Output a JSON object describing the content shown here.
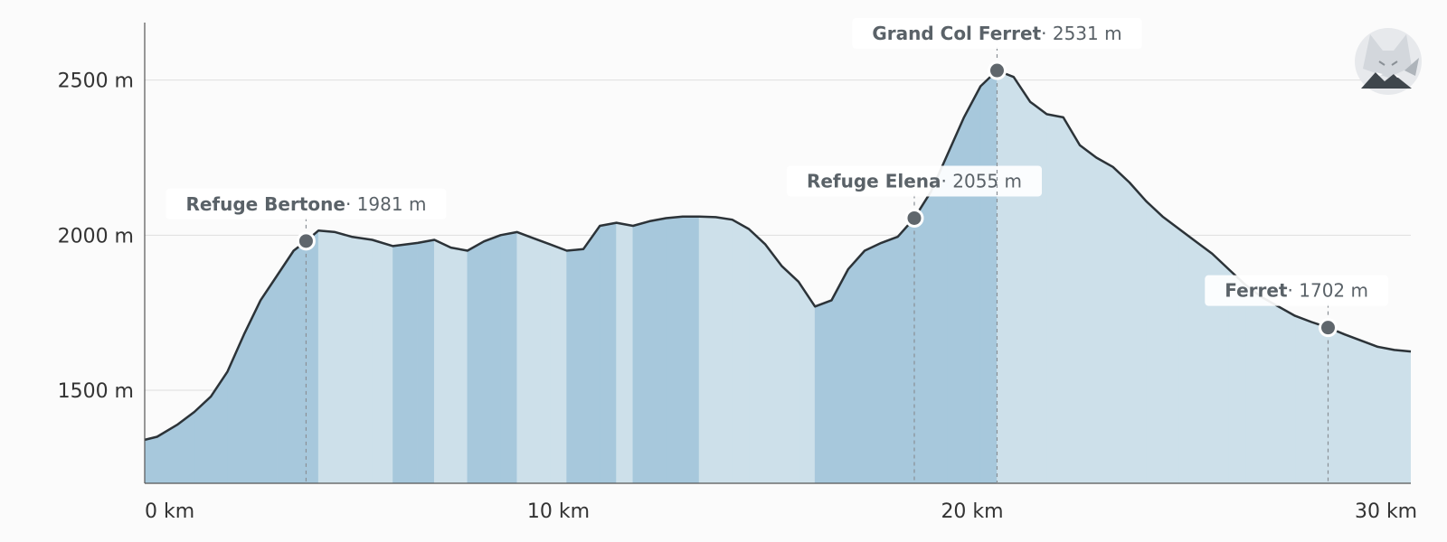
{
  "chart_data": {
    "type": "area",
    "xlabel": "",
    "ylabel": "",
    "x_unit": "km",
    "y_unit": "m",
    "xlim": [
      0,
      30.6
    ],
    "ylim": [
      1200,
      2700
    ],
    "x_ticks": [
      0,
      10,
      20,
      30
    ],
    "x_tick_labels": [
      "0 km",
      "10 km",
      "20 km",
      "30 km"
    ],
    "y_ticks": [
      1500,
      2000,
      2500
    ],
    "y_tick_labels": [
      "1500 m",
      "2000 m",
      "2500 m"
    ],
    "grid": "horizontal",
    "colors": {
      "uphill": "#a7c8dc",
      "downhill": "#cde0ea",
      "line": "#2c3338",
      "marker": "#5f666c"
    },
    "profile": {
      "x": [
        0,
        0.3,
        0.8,
        1.2,
        1.6,
        2.0,
        2.4,
        2.8,
        3.2,
        3.6,
        3.9,
        4.2,
        4.6,
        5.0,
        5.5,
        6.0,
        6.6,
        7.0,
        7.4,
        7.8,
        8.2,
        8.6,
        9.0,
        9.4,
        9.8,
        10.2,
        10.6,
        11.0,
        11.4,
        11.8,
        12.2,
        12.6,
        13.0,
        13.4,
        13.8,
        14.2,
        14.6,
        15.0,
        15.4,
        15.8,
        16.2,
        16.6,
        17.0,
        17.4,
        17.8,
        18.2,
        18.6,
        19.0,
        19.4,
        19.8,
        20.2,
        20.6,
        21.0,
        21.4,
        21.8,
        22.2,
        22.6,
        23.0,
        23.4,
        23.8,
        24.2,
        24.6,
        25.0,
        25.4,
        25.8,
        26.2,
        26.6,
        27.0,
        27.4,
        27.8,
        28.2,
        28.6,
        29.0,
        29.4,
        29.8,
        30.2,
        30.6
      ],
      "elevation": [
        1340,
        1350,
        1390,
        1430,
        1480,
        1560,
        1680,
        1790,
        1870,
        1950,
        1981,
        2015,
        2010,
        1995,
        1985,
        1965,
        1975,
        1985,
        1960,
        1950,
        1980,
        2000,
        2010,
        1990,
        1970,
        1950,
        1955,
        2030,
        2040,
        2030,
        2045,
        2055,
        2060,
        2060,
        2058,
        2050,
        2020,
        1970,
        1900,
        1850,
        1770,
        1790,
        1890,
        1950,
        1975,
        1995,
        2055,
        2140,
        2260,
        2380,
        2480,
        2531,
        2510,
        2430,
        2390,
        2380,
        2290,
        2250,
        2220,
        2170,
        2110,
        2060,
        2020,
        1980,
        1940,
        1890,
        1840,
        1800,
        1770,
        1740,
        1720,
        1702,
        1680,
        1660,
        1640,
        1630,
        1625
      ]
    },
    "waypoints": [
      {
        "name": "Refuge Bertone",
        "elevation_label": "· 1981 m",
        "x": 3.9,
        "y": 1981
      },
      {
        "name": "Refuge Elena",
        "elevation_label": "· 2055 m",
        "x": 18.6,
        "y": 2055
      },
      {
        "name": "Grand Col Ferret",
        "elevation_label": "· 2531 m",
        "x": 20.6,
        "y": 2531
      },
      {
        "name": "Ferret",
        "elevation_label": "· 1702 m",
        "x": 28.6,
        "y": 1702
      }
    ]
  },
  "logo": {
    "name": "fox-logo-icon"
  }
}
